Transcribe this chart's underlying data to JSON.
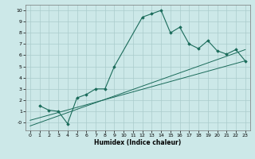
{
  "xlabel": "Humidex (Indice chaleur)",
  "background_color": "#cce8e8",
  "grid_color": "#aacccc",
  "line_color": "#1a6b5a",
  "xlim": [
    -0.5,
    23.5
  ],
  "ylim": [
    -0.7,
    10.5
  ],
  "xticks": [
    0,
    1,
    2,
    3,
    4,
    5,
    6,
    7,
    8,
    9,
    10,
    11,
    12,
    13,
    14,
    15,
    16,
    17,
    18,
    19,
    20,
    21,
    22,
    23
  ],
  "yticks": [
    0,
    1,
    2,
    3,
    4,
    5,
    6,
    7,
    8,
    9,
    10
  ],
  "ytick_labels": [
    "-0",
    "1",
    "2",
    "3",
    "4",
    "5",
    "6",
    "7",
    "8",
    "9",
    "10"
  ],
  "curve_x": [
    1,
    2,
    3,
    4,
    5,
    6,
    7,
    8,
    9,
    12,
    13,
    14,
    15,
    16,
    17,
    18,
    19,
    20,
    21,
    22,
    23
  ],
  "curve_y": [
    1.5,
    1.1,
    1.0,
    -0.1,
    2.2,
    2.5,
    3.0,
    3.0,
    5.0,
    9.4,
    9.7,
    10.0,
    8.0,
    8.5,
    7.0,
    6.6,
    7.3,
    6.4,
    6.1,
    6.5,
    5.5
  ],
  "line1_x": [
    0,
    23
  ],
  "line1_y": [
    -0.3,
    6.5
  ],
  "line2_x": [
    0,
    23
  ],
  "line2_y": [
    0.2,
    5.5
  ]
}
